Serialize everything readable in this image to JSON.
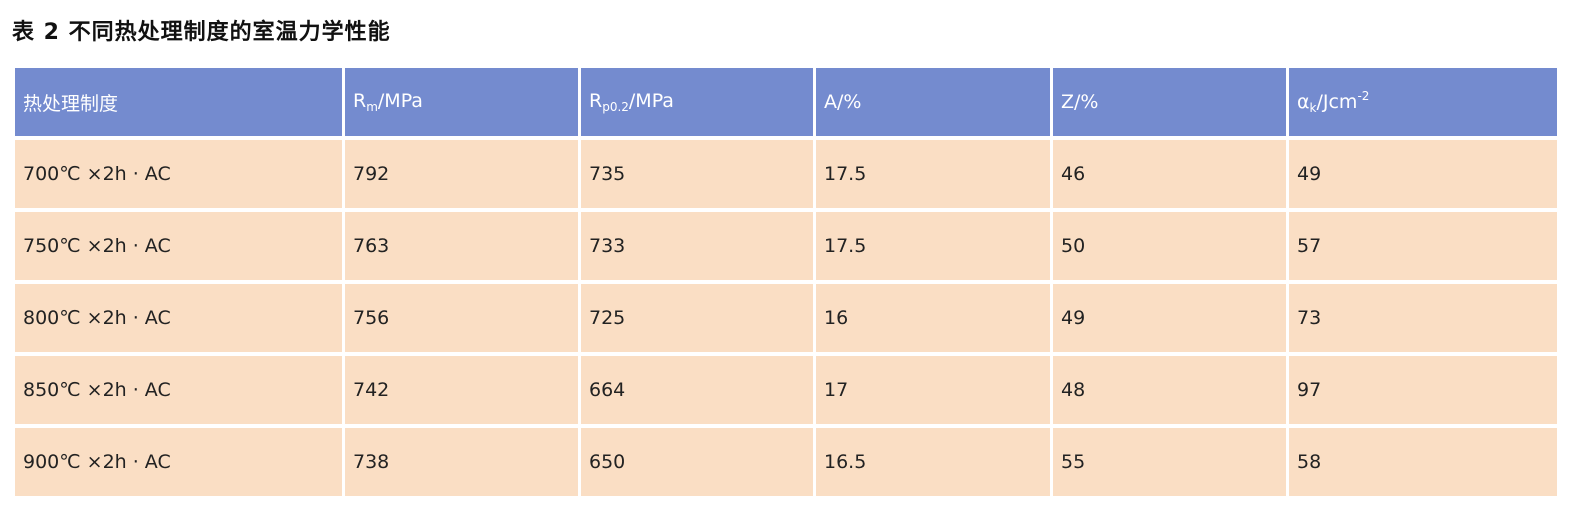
{
  "title": "表 2  不同热处理制度的室温力学性能",
  "colors": {
    "header_bg": "#748bcf",
    "row_bg": "#fadec4"
  },
  "headers": [
    {
      "main": "热处理制度"
    },
    {
      "main": "R",
      "sub": "m",
      "rest": "/MPa"
    },
    {
      "main": "R",
      "sub": "p0.2",
      "rest": "/MPa"
    },
    {
      "main": "A/%"
    },
    {
      "main": "Z/%"
    },
    {
      "main": "α",
      "sub": "k",
      "rest": "/Jcm",
      "sup": "-2"
    }
  ],
  "rows": [
    [
      "700℃ ×2h · AC",
      "792",
      "735",
      "17.5",
      "46",
      "49"
    ],
    [
      "750℃ ×2h · AC",
      "763",
      "733",
      "17.5",
      "50",
      "57"
    ],
    [
      "800℃ ×2h · AC",
      "756",
      "725",
      "16",
      "49",
      "73"
    ],
    [
      "850℃ ×2h · AC",
      "742",
      "664",
      "17",
      "48",
      "97"
    ],
    [
      "900℃ ×2h · AC",
      "738",
      "650",
      "16.5",
      "55",
      "58"
    ]
  ]
}
